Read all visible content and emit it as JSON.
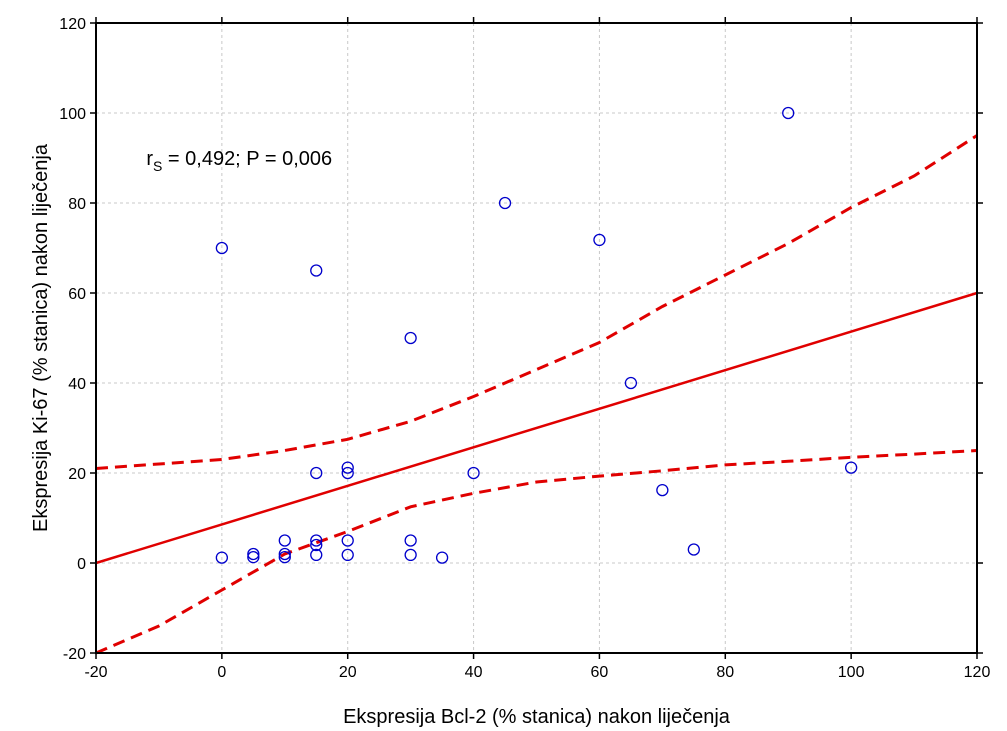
{
  "chart_data": {
    "type": "scatter",
    "xlabel": "Ekspresija Bcl-2 (% stanica) nakon liječenja",
    "ylabel": "Ekspresija Ki-67 (% stanica) nakon liječenja",
    "xlim": [
      -20,
      120
    ],
    "ylim": [
      -20,
      120
    ],
    "x_ticks": [
      "-20",
      "0",
      "20",
      "40",
      "60",
      "80",
      "100",
      "120"
    ],
    "y_ticks": [
      "-20",
      "0",
      "20",
      "40",
      "60",
      "80",
      "100",
      "120"
    ],
    "grid": true,
    "annotation": {
      "prefix": "r",
      "subscript": "S",
      "text": " = 0,492; P = 0,006",
      "x": -12,
      "y": 90
    },
    "points": [
      {
        "x": 0,
        "y": 70
      },
      {
        "x": 0,
        "y": 1.2
      },
      {
        "x": 5,
        "y": 2
      },
      {
        "x": 5,
        "y": 1.3
      },
      {
        "x": 10,
        "y": 5
      },
      {
        "x": 10,
        "y": 2
      },
      {
        "x": 10,
        "y": 1.3
      },
      {
        "x": 15,
        "y": 65
      },
      {
        "x": 15,
        "y": 20
      },
      {
        "x": 15,
        "y": 5
      },
      {
        "x": 15,
        "y": 4
      },
      {
        "x": 15,
        "y": 1.8
      },
      {
        "x": 20,
        "y": 21.2
      },
      {
        "x": 20,
        "y": 20
      },
      {
        "x": 20,
        "y": 5
      },
      {
        "x": 20,
        "y": 1.8
      },
      {
        "x": 30,
        "y": 50
      },
      {
        "x": 30,
        "y": 5
      },
      {
        "x": 30,
        "y": 1.8
      },
      {
        "x": 35,
        "y": 1.2
      },
      {
        "x": 40,
        "y": 20
      },
      {
        "x": 45,
        "y": 80
      },
      {
        "x": 60,
        "y": 71.8
      },
      {
        "x": 65,
        "y": 40
      },
      {
        "x": 70,
        "y": 16.2
      },
      {
        "x": 75,
        "y": 3
      },
      {
        "x": 90,
        "y": 100
      },
      {
        "x": 100,
        "y": 21.2
      }
    ],
    "regression": {
      "x": [
        -20,
        120
      ],
      "y": [
        0,
        60
      ]
    },
    "ci_upper": {
      "x": [
        -20,
        -10,
        0,
        10,
        20,
        30,
        40,
        50,
        60,
        70,
        80,
        90,
        100,
        110,
        120
      ],
      "y": [
        21,
        22,
        23,
        25,
        27.5,
        31.5,
        37,
        43,
        49,
        57,
        64,
        71,
        79,
        86,
        95
      ]
    },
    "ci_lower": {
      "x": [
        -20,
        -10,
        0,
        10,
        20,
        30,
        40,
        50,
        60,
        70,
        80,
        90,
        100,
        110,
        120
      ],
      "y": [
        -20,
        -14,
        -6,
        2,
        7,
        12.5,
        15.5,
        18,
        19.3,
        20.5,
        21.8,
        22.6,
        23.5,
        24.2,
        25
      ]
    },
    "colors": {
      "points": "#0000cc",
      "fit": "#e00000",
      "grid": "#c8c8c8",
      "frame": "#000000"
    }
  }
}
